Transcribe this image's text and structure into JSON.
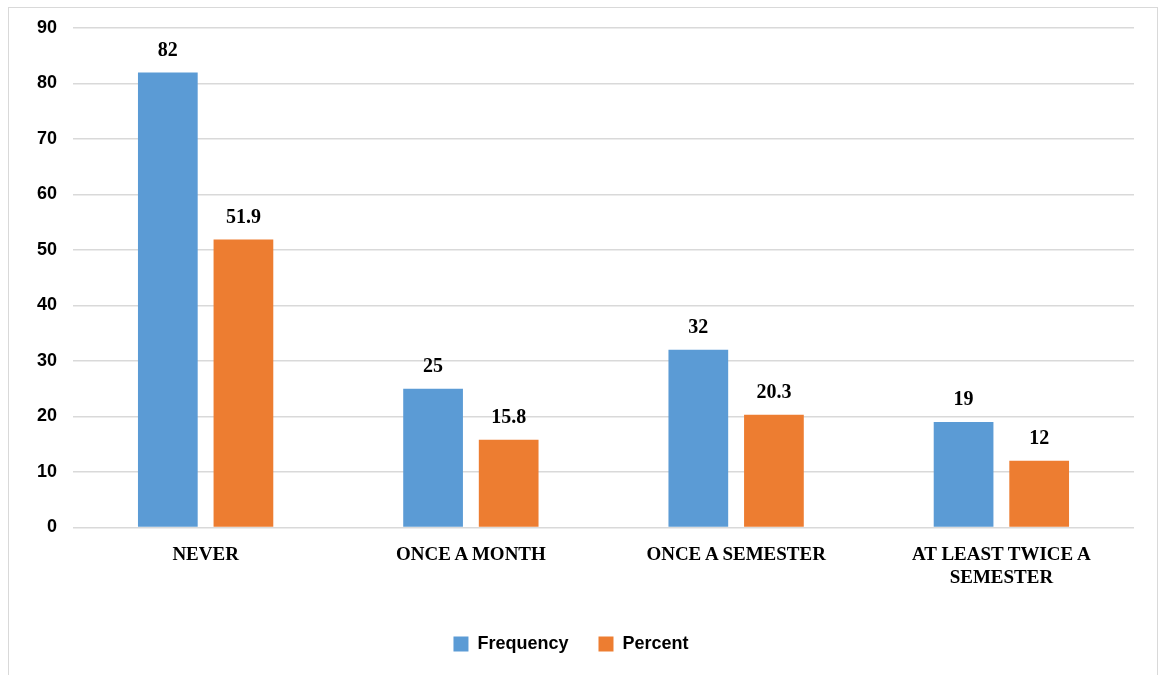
{
  "chart_data": {
    "type": "bar",
    "categories": [
      "NEVER",
      "ONCE A MONTH",
      "ONCE A SEMESTER",
      "AT LEAST TWICE A SEMESTER"
    ],
    "series": [
      {
        "name": "Frequency",
        "color": "#5b9bd5",
        "values": [
          82,
          25,
          32,
          19
        ]
      },
      {
        "name": "Percent",
        "color": "#ed7d31",
        "values": [
          51.9,
          15.8,
          20.3,
          12
        ]
      }
    ],
    "ylim": [
      0,
      90
    ],
    "yticks": [
      0,
      10,
      20,
      30,
      40,
      50,
      60,
      70,
      80,
      90
    ],
    "grid": "y",
    "legend": "bottom",
    "data_labels": true
  }
}
